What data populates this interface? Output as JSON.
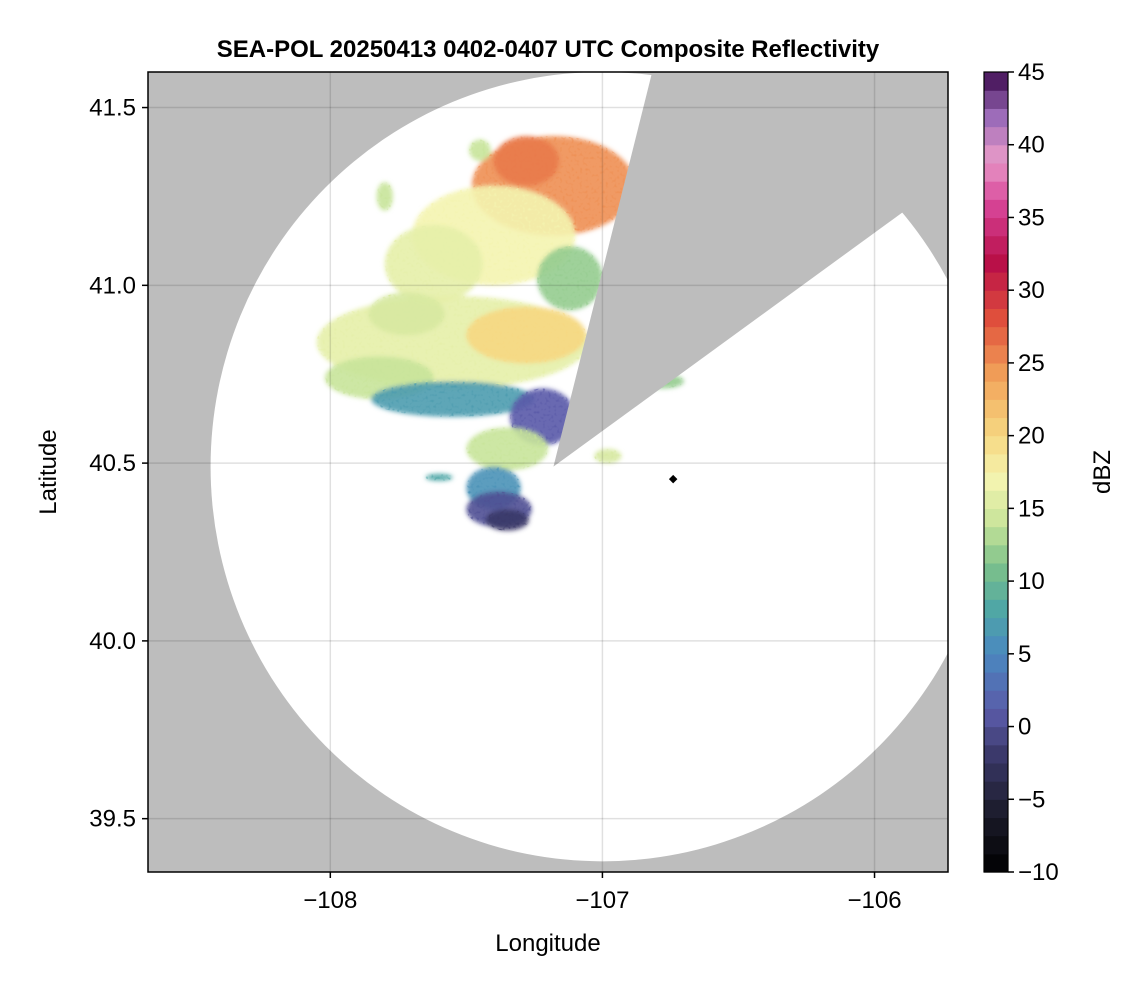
{
  "chart_data": {
    "type": "heatmap",
    "title": "SEA-POL 20250413 0402-0407 UTC Composite Reflectivity",
    "xlabel": "Longitude",
    "ylabel": "Latitude",
    "xlim": [
      -108.67,
      -105.73
    ],
    "ylim": [
      39.35,
      41.6
    ],
    "x_ticks": [
      -108,
      -107,
      -106
    ],
    "x_tick_labels": [
      "−108",
      "−107",
      "−106"
    ],
    "y_ticks": [
      39.5,
      40.0,
      40.5,
      41.0,
      41.5
    ],
    "y_tick_labels": [
      "39.5",
      "40.0",
      "40.5",
      "41.0",
      "41.5"
    ],
    "grid": true,
    "radar_site": {
      "lon": -106.74,
      "lat": 40.455
    },
    "coverage": {
      "center_lon": -107.0,
      "center_lat": 40.49,
      "radius_lat_deg": 1.11,
      "radius_lon_deg": 1.44
    },
    "blocked_sector": {
      "apex_lon": -107.18,
      "apex_lat": 40.49,
      "edge1": {
        "lon": -106.84,
        "lat": 41.53
      },
      "edge2": {
        "lon": -106.05,
        "lat": 41.12
      }
    },
    "masked_color": "#bdbdbd",
    "colorbar": {
      "label": "dBZ",
      "range": [
        -10,
        45
      ],
      "ticks": [
        -10,
        -5,
        0,
        5,
        10,
        15,
        20,
        25,
        30,
        35,
        40,
        45
      ],
      "tick_labels": [
        "−10",
        "−5",
        "0",
        "5",
        "10",
        "15",
        "20",
        "25",
        "30",
        "35",
        "40",
        "45"
      ],
      "colormap": [
        {
          "dbz": -10,
          "color": "#000000"
        },
        {
          "dbz": -6,
          "color": "#1b1b2a"
        },
        {
          "dbz": -2,
          "color": "#3a3868"
        },
        {
          "dbz": 1,
          "color": "#5a5aa8"
        },
        {
          "dbz": 5,
          "color": "#4a88c0"
        },
        {
          "dbz": 8,
          "color": "#4ea6a6"
        },
        {
          "dbz": 11,
          "color": "#7cc08a"
        },
        {
          "dbz": 14,
          "color": "#c8e49a"
        },
        {
          "dbz": 17,
          "color": "#f4f4b0"
        },
        {
          "dbz": 20,
          "color": "#f6d882"
        },
        {
          "dbz": 24,
          "color": "#f2a45a"
        },
        {
          "dbz": 28,
          "color": "#e0503c"
        },
        {
          "dbz": 32,
          "color": "#b80e48"
        },
        {
          "dbz": 36,
          "color": "#d8469a"
        },
        {
          "dbz": 39,
          "color": "#e89ac8"
        },
        {
          "dbz": 42,
          "color": "#9a6ab8"
        },
        {
          "dbz": 45,
          "color": "#3d0a4e"
        }
      ]
    },
    "echo_regions": [
      {
        "lon": -107.18,
        "lat": 41.28,
        "rlon": 0.3,
        "rlat": 0.14,
        "dbz": 25
      },
      {
        "lon": -107.28,
        "lat": 41.35,
        "rlon": 0.12,
        "rlat": 0.07,
        "dbz": 26
      },
      {
        "lon": -107.4,
        "lat": 41.14,
        "rlon": 0.3,
        "rlat": 0.14,
        "dbz": 17
      },
      {
        "lon": -107.12,
        "lat": 41.02,
        "rlon": 0.12,
        "rlat": 0.09,
        "dbz": 12
      },
      {
        "lon": -107.62,
        "lat": 41.06,
        "rlon": 0.18,
        "rlat": 0.11,
        "dbz": 16
      },
      {
        "lon": -107.55,
        "lat": 40.84,
        "rlon": 0.5,
        "rlat": 0.13,
        "dbz": 16
      },
      {
        "lon": -107.28,
        "lat": 40.86,
        "rlon": 0.22,
        "rlat": 0.08,
        "dbz": 20
      },
      {
        "lon": -107.82,
        "lat": 40.74,
        "rlon": 0.2,
        "rlat": 0.06,
        "dbz": 14
      },
      {
        "lon": -107.72,
        "lat": 40.92,
        "rlon": 0.14,
        "rlat": 0.06,
        "dbz": 15
      },
      {
        "lon": -107.55,
        "lat": 40.68,
        "rlon": 0.3,
        "rlat": 0.05,
        "dbz": 7
      },
      {
        "lon": -107.22,
        "lat": 40.63,
        "rlon": 0.12,
        "rlat": 0.08,
        "dbz": 1
      },
      {
        "lon": -107.35,
        "lat": 40.54,
        "rlon": 0.15,
        "rlat": 0.06,
        "dbz": 14
      },
      {
        "lon": -107.4,
        "lat": 40.43,
        "rlon": 0.1,
        "rlat": 0.06,
        "dbz": 6
      },
      {
        "lon": -107.38,
        "lat": 40.37,
        "rlon": 0.12,
        "rlat": 0.05,
        "dbz": 0
      },
      {
        "lon": -107.35,
        "lat": 40.34,
        "rlon": 0.08,
        "rlat": 0.03,
        "dbz": -2
      },
      {
        "lon": -106.98,
        "lat": 40.52,
        "rlon": 0.05,
        "rlat": 0.02,
        "dbz": 15
      },
      {
        "lon": -106.78,
        "lat": 40.73,
        "rlon": 0.08,
        "rlat": 0.02,
        "dbz": 12
      },
      {
        "lon": -107.45,
        "lat": 41.38,
        "rlon": 0.04,
        "rlat": 0.03,
        "dbz": 14
      },
      {
        "lon": -107.8,
        "lat": 41.25,
        "rlon": 0.03,
        "rlat": 0.04,
        "dbz": 14
      },
      {
        "lon": -107.6,
        "lat": 40.46,
        "rlon": 0.05,
        "rlat": 0.01,
        "dbz": 8
      }
    ]
  }
}
